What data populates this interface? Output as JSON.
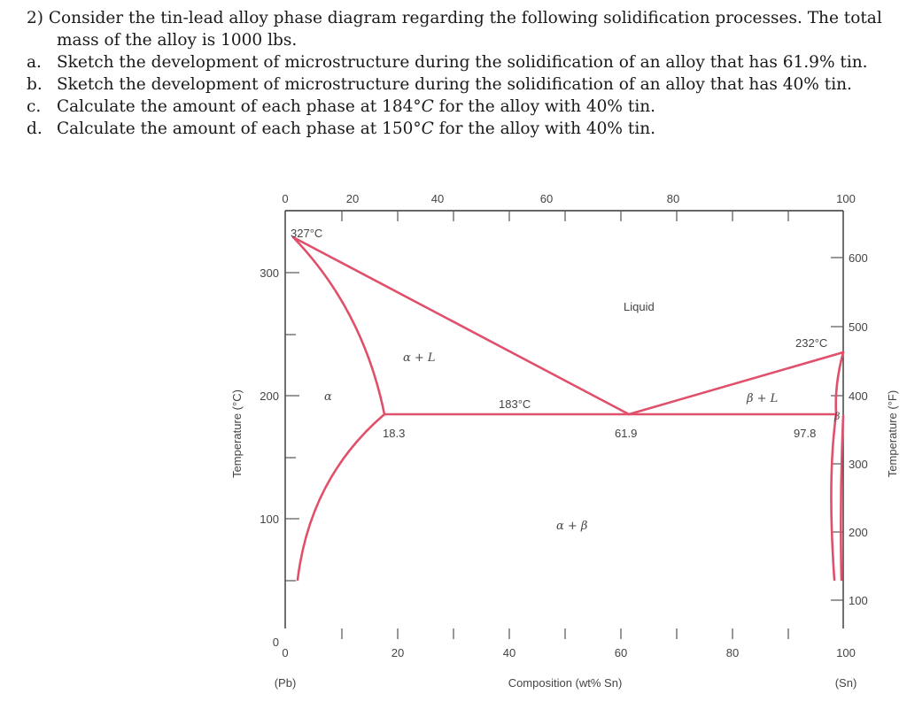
{
  "question": {
    "number": "2)",
    "intro": "Consider the tin-lead alloy phase diagram regarding the following solidification processes. The total",
    "intro2": "mass of the alloy is 1000 lbs.",
    "items": [
      {
        "label": "a.",
        "text": "Sketch the development of microstructure during the solidification of an alloy that has 61.9% tin."
      },
      {
        "label": "b.",
        "text": "Sketch the development of microstructure during the solidification of an alloy that has 40% tin."
      },
      {
        "label": "c.",
        "pre": "Calculate the amount of each phase at 184",
        "deg": "°",
        "unit": "C",
        "post": " for the alloy with 40% tin."
      },
      {
        "label": "d.",
        "pre": "Calculate the amount of each phase at 150",
        "deg": "°",
        "unit": "C",
        "post": " for the alloy with 40% tin."
      }
    ]
  },
  "diagram": {
    "top_ticks": [
      "0",
      "20",
      "40",
      "60",
      "80",
      "100"
    ],
    "bottom_ticks": [
      "0",
      "20",
      "40",
      "60",
      "80",
      "100"
    ],
    "left_ticks": [
      "300",
      "200",
      "100",
      "0"
    ],
    "right_ticks": [
      "600",
      "500",
      "400",
      "300",
      "200",
      "100"
    ],
    "x_label": "Composition (wt% Sn)",
    "x_left_end": "(Pb)",
    "x_right_end": "(Sn)",
    "y_left_label": "Temperature (°C)",
    "y_right_label": "Temperature (°F)",
    "labels": {
      "pb_melt": "327°C",
      "sn_melt": "232°C",
      "eutectic_temp": "183°C",
      "liquid": "Liquid",
      "alpha_l": "α + L",
      "beta_l": "β + L",
      "alpha": "α",
      "beta": "β",
      "alpha_beta": "α + β",
      "c_alpha": "18.3",
      "c_eutectic": "61.9",
      "c_beta": "97.8"
    },
    "colors": {
      "phase_lines": "#e0506a",
      "axes": "#333333"
    }
  }
}
